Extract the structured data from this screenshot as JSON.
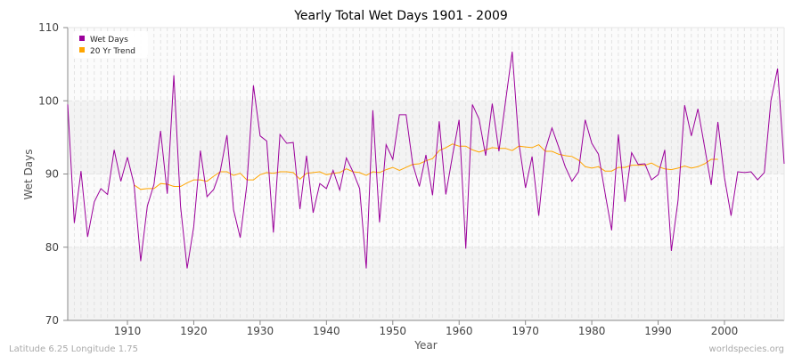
{
  "chart_data": {
    "type": "line",
    "title": "Yearly Total Wet Days 1901 - 2009",
    "xlabel": "Year",
    "ylabel": "Wet Days",
    "xlim": [
      1901,
      2009
    ],
    "ylim": [
      70,
      110
    ],
    "yticks": [
      70,
      80,
      90,
      100,
      110
    ],
    "xticks": [
      1910,
      1920,
      1930,
      1940,
      1950,
      1960,
      1970,
      1980,
      1990,
      2000
    ],
    "grid": true,
    "legend_position": "top-left",
    "series": [
      {
        "name": "Wet Days",
        "color": "#9b009b",
        "start_year": 1901,
        "values": [
          99.5,
          83.3,
          90.4,
          81.4,
          86.2,
          88.0,
          87.2,
          93.3,
          89.0,
          92.3,
          88.6,
          78.1,
          85.6,
          88.6,
          95.9,
          87.3,
          103.5,
          85.6,
          77.1,
          82.8,
          93.2,
          86.9,
          87.9,
          90.4,
          95.3,
          85.1,
          81.3,
          88.5,
          102.1,
          95.2,
          94.5,
          82.0,
          95.4,
          94.2,
          94.3,
          85.2,
          92.5,
          84.7,
          88.7,
          88.0,
          90.5,
          87.8,
          92.2,
          90.3,
          88.0,
          77.1,
          98.7,
          83.4,
          94.0,
          92.0,
          98.1,
          98.1,
          91.4,
          88.3,
          92.6,
          87.1,
          97.2,
          87.2,
          92.5,
          97.4,
          79.8,
          99.5,
          97.5,
          92.5,
          99.6,
          93.1,
          99.9,
          106.7,
          94.3,
          88.1,
          92.4,
          84.3,
          93.3,
          96.3,
          93.7,
          91.0,
          89.0,
          90.3,
          97.4,
          94.2,
          92.7,
          87.4,
          82.3,
          95.4,
          86.2,
          92.9,
          91.3,
          91.4,
          89.2,
          89.9,
          93.3,
          79.5,
          86.4,
          99.4,
          95.2,
          98.9,
          93.7,
          88.5,
          97.1,
          89.5,
          84.3,
          90.3,
          90.2,
          90.3,
          89.2,
          90.2,
          100.0,
          104.4,
          91.4
        ]
      },
      {
        "name": "20 Yr Trend",
        "color": "#ffa500",
        "start_year": 1911,
        "values": [
          88.5,
          87.9,
          88.0,
          88.0,
          88.7,
          88.6,
          88.3,
          88.3,
          88.8,
          89.2,
          89.2,
          89.0,
          89.7,
          90.3,
          90.3,
          89.8,
          90.1,
          89.2,
          89.2,
          89.9,
          90.2,
          90.1,
          90.3,
          90.3,
          90.2,
          89.3,
          90.1,
          90.2,
          90.3,
          89.9,
          90.1,
          90.2,
          90.7,
          90.3,
          90.2,
          89.8,
          90.3,
          90.2,
          90.6,
          90.9,
          90.5,
          90.9,
          91.3,
          91.4,
          91.8,
          92.1,
          93.2,
          93.6,
          94.1,
          93.8,
          93.8,
          93.3,
          93.0,
          93.3,
          93.6,
          93.5,
          93.5,
          93.2,
          93.8,
          93.7,
          93.6,
          94.0,
          93.1,
          93.1,
          92.7,
          92.5,
          92.4,
          91.9,
          91.0,
          90.8,
          91.0,
          90.4,
          90.4,
          90.9,
          90.9,
          91.2,
          91.2,
          91.2,
          91.5,
          91.0,
          90.7,
          90.6,
          90.8,
          91.1,
          90.8,
          91.0,
          91.4,
          92.0,
          92.0
        ]
      }
    ]
  },
  "footer": {
    "location": "Latitude 6.25 Longitude 1.75",
    "source": "worldspecies.org"
  }
}
